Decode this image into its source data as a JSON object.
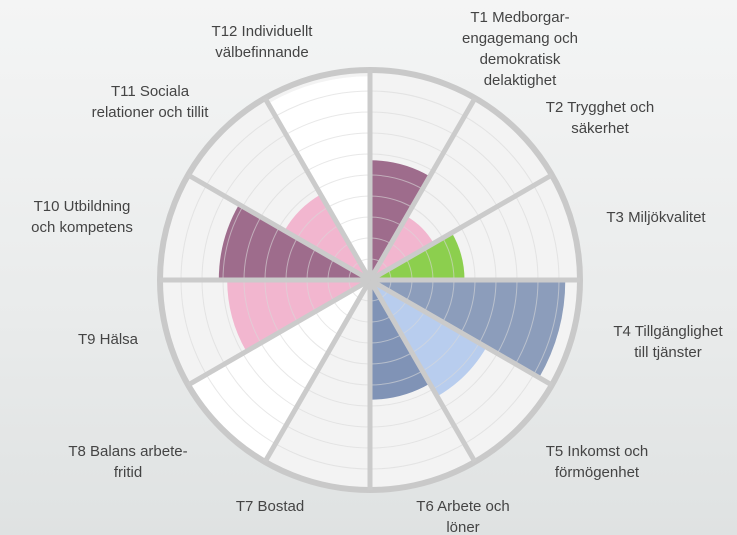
{
  "chart_data": {
    "type": "polar",
    "categories": [
      [
        "T1 Medborgar-",
        "engagemang och",
        "demokratisk",
        "delaktighet"
      ],
      [
        "T2 Trygghet och",
        "säkerhet"
      ],
      [
        "T3 Miljökvalitet"
      ],
      [
        "T4 Tillgänglighet",
        "till tjänster"
      ],
      [
        "T5 Inkomst och",
        "förmögenhet"
      ],
      [
        "T6 Arbete och",
        "löner"
      ],
      [
        "T7 Bostad"
      ],
      [
        "T8 Balans arbete-",
        "fritid"
      ],
      [
        "T9 Hälsa"
      ],
      [
        "T10 Utbildning",
        "och kompetens"
      ],
      [
        "T11 Sociala",
        "relationer och tillit"
      ],
      [
        "T12 Individuellt",
        "välbefinnande"
      ]
    ],
    "values": [
      5.7,
      3.5,
      4.5,
      9.3,
      6.4,
      5.7,
      0,
      10,
      6.8,
      7.2,
      4.7,
      9.7
    ],
    "colors": [
      "#9e6c8c",
      "#f2b6cf",
      "#8ccf4e",
      "#8c9dbb",
      "#b8cdee",
      "#8093b6",
      "#ffffff",
      "#ffffff",
      "#f2b6cf",
      "#9e6c8c",
      "#f2b6cf",
      "#ffffff"
    ],
    "rlim": [
      0,
      10
    ],
    "rticks": [
      1,
      2,
      3,
      4,
      5,
      6,
      7,
      8,
      9,
      10
    ],
    "grid": true
  }
}
